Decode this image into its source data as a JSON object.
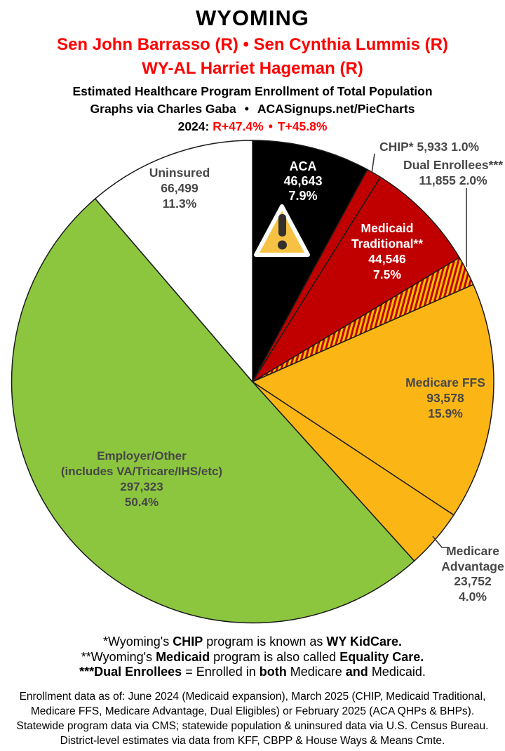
{
  "header": {
    "state": "WYOMING",
    "senators": "Sen John Barrasso (R) • Sen Cynthia Lummis (R)",
    "representative": "WY-AL Harriet Hageman (R)",
    "subtitle1": "Estimated Healthcare Program Enrollment of Total Population",
    "credit": "Graphs via Charles Gaba",
    "credit_bullet": "•",
    "site": "ACASignups.net/PieCharts",
    "year_label": "2024:",
    "r_margin": "R+47.4%",
    "margin_bullet": "•",
    "t_margin": "T+45.8%"
  },
  "colors": {
    "red_text": "#ff0000",
    "slice_black": "#000000",
    "slice_red": "#C00000",
    "slice_gold": "#FBB616",
    "slice_green": "#8CC63F",
    "slice_white": "#FFFFFF",
    "hatch_red": "#C00000",
    "hatch_gold": "#FFC000",
    "dark_label": "#474747",
    "stroke": "#1a1a1a"
  },
  "chart_data": {
    "type": "pie",
    "title": "Estimated Healthcare Program Enrollment of Total Population",
    "start_angle_deg": -90,
    "direction": "clockwise",
    "center": [
      360,
      544
    ],
    "radius": 344,
    "slices": [
      {
        "id": "aca",
        "label": "ACA",
        "value": "46,643",
        "value_num": 46643,
        "pct": 7.9,
        "pct_label": "7.9%",
        "color": "#000000"
      },
      {
        "id": "chip",
        "label": "CHIP*",
        "value": "5,933",
        "value_num": 5933,
        "pct": 1.0,
        "pct_label": "1.0%",
        "color": "#C00000"
      },
      {
        "id": "medicaid-traditional",
        "label_line1": "Medicaid",
        "label_line2": "Traditional**",
        "value": "44,546",
        "value_num": 44546,
        "pct": 7.5,
        "pct_label": "7.5%",
        "color": "#C00000"
      },
      {
        "id": "dual-enrollees",
        "label": "Dual Enrollees***",
        "value": "11,855",
        "value_num": 11855,
        "pct": 2.0,
        "pct_label": "2.0%",
        "color": "hatch"
      },
      {
        "id": "medicare-ffs",
        "label": "Medicare FFS",
        "value": "93,578",
        "value_num": 93578,
        "pct": 15.9,
        "pct_label": "15.9%",
        "color": "#FBB616"
      },
      {
        "id": "medicare-advantage",
        "label_line1": "Medicare",
        "label_line2": "Advantage",
        "value": "23,752",
        "value_num": 23752,
        "pct": 4.0,
        "pct_label": "4.0%",
        "color": "#FBB616"
      },
      {
        "id": "employer-other",
        "label_line1": "Employer/Other",
        "label_line2": "(includes VA/Tricare/IHS/etc)",
        "value": "297,323",
        "value_num": 297323,
        "pct": 50.4,
        "pct_label": "50.4%",
        "color": "#8CC63F"
      },
      {
        "id": "uninsured",
        "label": "Uninsured",
        "value": "66,499",
        "value_num": 66499,
        "pct": 11.3,
        "pct_label": "11.3%",
        "color": "#FFFFFF"
      }
    ]
  },
  "footnotes": {
    "line1": {
      "s0": "*Wyoming's ",
      "b1": "CHIP",
      "s1": " program is known as ",
      "b2": "WY KidCare."
    },
    "line2": {
      "s0": "**Wyoming's ",
      "b1": "Medicaid",
      "s1": " program is also called ",
      "b2": "Equality Care."
    },
    "line3": {
      "b0": "***Dual Enrollees",
      "s0": " = Enrolled in ",
      "b1": "both",
      "s1": " Medicare ",
      "b2": "and",
      "s2": " Medicaid."
    }
  },
  "source": {
    "line1": "Enrollment data as of: June 2024 (Medicaid expansion), March 2025 (CHIP, Medicaid Traditional,",
    "line2": "Medicare FFS, Medicare Advantage, Dual Eligibles) or February 2025 (ACA QHPs & BHPs).",
    "line3": "Statewide program data via CMS; statewide population & uninsured data via U.S. Census Bureau.",
    "line4": "District-level estimates via data from KFF, CBPP & House Ways & Means Cmte."
  }
}
